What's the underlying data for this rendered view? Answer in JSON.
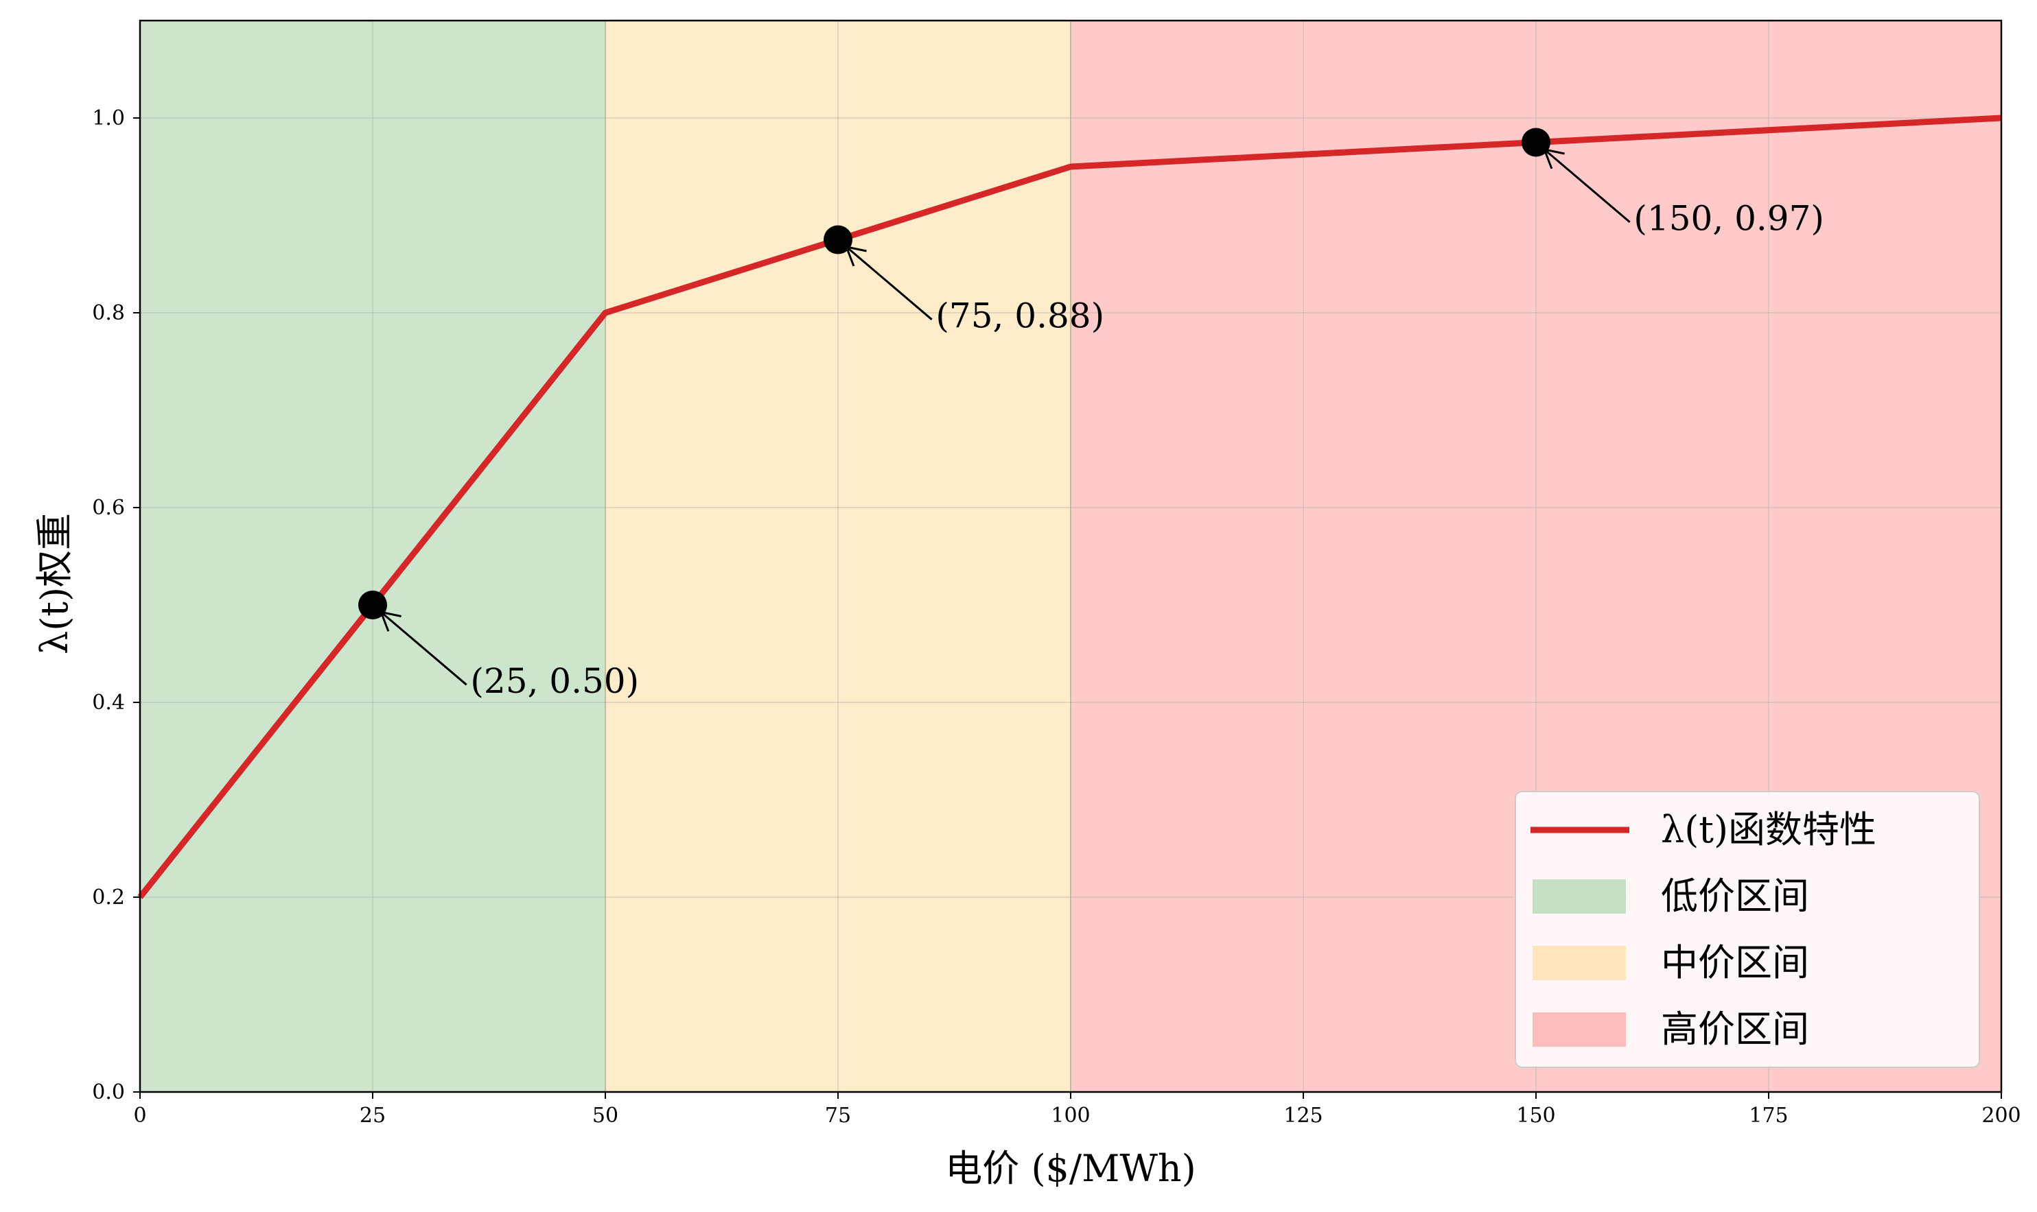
{
  "colors": {
    "line": "#d62728",
    "low": "#cde4cd",
    "mid": "#feecca",
    "high": "#fecaca",
    "legend_low": "#c4dfc4",
    "legend_mid": "#fde5bc",
    "legend_high": "#fdbdbd",
    "marker": "#000000",
    "grid": "#b0b0b0"
  },
  "chart_data": {
    "type": "line",
    "title": "",
    "xlabel": "电价 ($/MWh)",
    "ylabel": "λ(t)权重",
    "xlim": [
      0,
      200
    ],
    "ylim": [
      0,
      1.1
    ],
    "grid": true,
    "legend_placement": "bottom-right",
    "x_ticks": [
      0,
      25,
      50,
      75,
      100,
      125,
      150,
      175,
      200
    ],
    "x_tick_labels": [
      "0",
      "25",
      "50",
      "75",
      "100",
      "125",
      "150",
      "175",
      "200"
    ],
    "y_ticks": [
      0,
      0.2,
      0.4,
      0.6,
      0.8,
      1.0
    ],
    "y_tick_labels": [
      "0.0",
      "0.2",
      "0.4",
      "0.6",
      "0.8",
      "1.0"
    ],
    "series": [
      {
        "name": "λ(t)函数特性",
        "x": [
          0,
          50,
          100,
          200
        ],
        "y": [
          0.2,
          0.8,
          0.95,
          1.0
        ]
      }
    ],
    "regions": [
      {
        "name": "低价区间",
        "x_start": 0,
        "x_end": 50,
        "color_key": "low"
      },
      {
        "name": "中价区间",
        "x_start": 50,
        "x_end": 100,
        "color_key": "mid"
      },
      {
        "name": "高价区间",
        "x_start": 100,
        "x_end": 200,
        "color_key": "high"
      }
    ],
    "annotations": [
      {
        "x": 25,
        "y": 0.5,
        "label": "(25, 0.50)",
        "text_x": 35.5,
        "text_y": 0.41
      },
      {
        "x": 75,
        "y": 0.875,
        "label": "(75, 0.88)",
        "text_x": 85.5,
        "text_y": 0.785
      },
      {
        "x": 150,
        "y": 0.975,
        "label": "(150, 0.97)",
        "text_x": 160.5,
        "text_y": 0.885
      }
    ]
  }
}
